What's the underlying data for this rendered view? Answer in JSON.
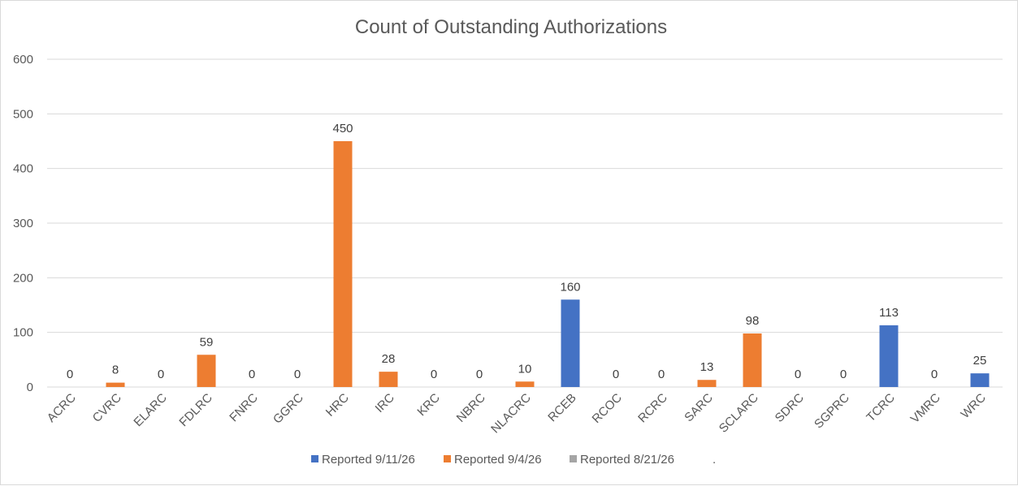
{
  "chart_data": {
    "type": "bar",
    "title": "Count of Outstanding Authorizations",
    "xlabel": "",
    "ylabel": "",
    "ylim": [
      0,
      600
    ],
    "yticks": [
      0,
      100,
      200,
      300,
      400,
      500,
      600
    ],
    "grid": true,
    "legend_position": "bottom",
    "categories": [
      "ACRC",
      "CVRC",
      "ELARC",
      "FDLRC",
      "FNRC",
      "GGRC",
      "HRC",
      "IRC",
      "KRC",
      "NBRC",
      "NLACRC",
      "RCEB",
      "RCOC",
      "RCRC",
      "SARC",
      "SCLARC",
      "SDRC",
      "SGPRC",
      "TCRC",
      "VMRC",
      "WRC"
    ],
    "series": [
      {
        "name": "Reported 9/11/26",
        "color": "#4472c4",
        "values": [
          null,
          null,
          null,
          null,
          null,
          null,
          null,
          null,
          null,
          null,
          null,
          160,
          null,
          null,
          null,
          null,
          null,
          null,
          113,
          null,
          25
        ]
      },
      {
        "name": "Reported 9/4/26",
        "color": "#ed7d31",
        "values": [
          null,
          8,
          null,
          59,
          null,
          null,
          450,
          28,
          null,
          null,
          10,
          null,
          null,
          null,
          13,
          98,
          null,
          null,
          null,
          null,
          null
        ]
      },
      {
        "name": "Reported 8/21/26",
        "color": "#a5a5a5",
        "values": [
          0,
          null,
          0,
          null,
          0,
          0,
          null,
          null,
          0,
          0,
          null,
          null,
          0,
          0,
          null,
          null,
          0,
          0,
          null,
          0,
          null
        ]
      }
    ],
    "extra_legend_text": "."
  }
}
